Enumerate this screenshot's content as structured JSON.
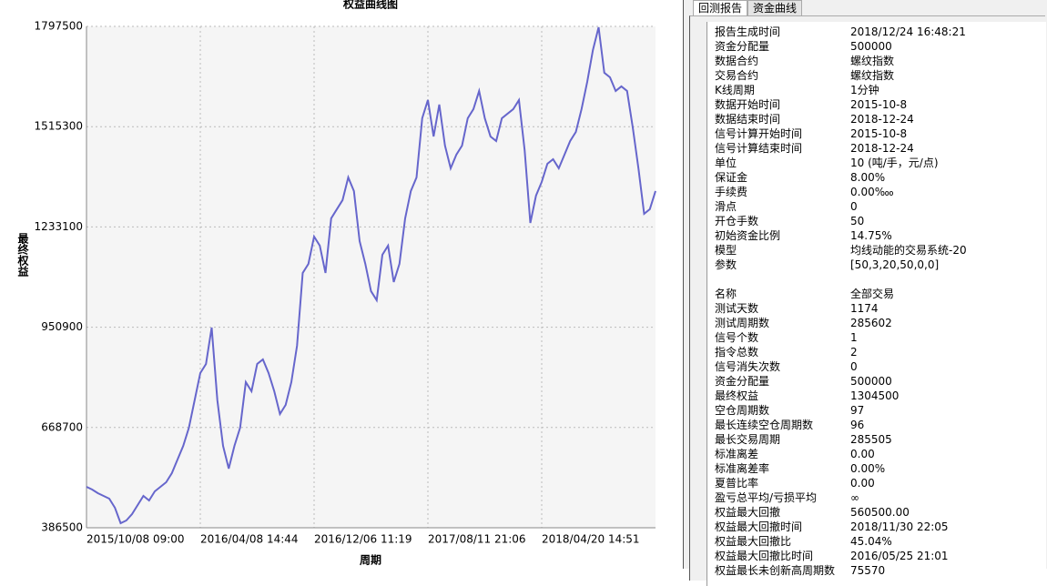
{
  "chart_data": {
    "type": "line",
    "title": "权益曲线图",
    "x_label": "周期",
    "y_label": "最终权益",
    "categories": [
      "2015/10/08 09:00",
      null,
      null,
      null,
      null,
      null,
      null,
      null,
      null,
      null,
      null,
      null,
      null,
      null,
      null,
      null,
      null,
      null,
      null,
      null,
      "2016/04/08 14:44",
      null,
      null,
      null,
      null,
      null,
      null,
      null,
      null,
      null,
      null,
      null,
      null,
      null,
      null,
      null,
      null,
      null,
      null,
      null,
      "2016/12/06 11:19",
      null,
      null,
      null,
      null,
      null,
      null,
      null,
      null,
      null,
      null,
      null,
      null,
      null,
      null,
      null,
      null,
      null,
      null,
      null,
      "2017/08/11 21:06",
      null,
      null,
      null,
      null,
      null,
      null,
      null,
      null,
      null,
      null,
      null,
      null,
      null,
      null,
      null,
      null,
      null,
      null,
      null,
      "2018/04/20 14:51",
      null,
      null,
      null,
      null,
      null,
      null,
      null,
      null,
      null,
      null,
      null,
      null,
      null,
      null,
      null,
      null,
      null,
      null,
      null,
      null
    ],
    "series": [
      {
        "name": "最终权益",
        "color": "#6666cc",
        "values": [
          501700,
          494100,
          483800,
          476100,
          468500,
          442800,
          399300,
          407000,
          424900,
          450500,
          476100,
          463300,
          488900,
          501700,
          514600,
          540200,
          578600,
          617000,
          668200,
          745000,
          821900,
          847500,
          949900,
          745000,
          617000,
          553000,
          617000,
          668200,
          796300,
          770700,
          847500,
          860300,
          821900,
          770700,
          706600,
          732200,
          796300,
          898700,
          1103600,
          1129200,
          1206000,
          1180400,
          1103600,
          1257200,
          1282900,
          1308500,
          1372500,
          1334100,
          1193200,
          1129200,
          1052400,
          1026800,
          1154800,
          1180400,
          1078000,
          1129200,
          1257200,
          1334100,
          1372500,
          1539000,
          1590200,
          1487700,
          1577400,
          1462100,
          1398100,
          1436500,
          1462100,
          1539000,
          1564600,
          1615800,
          1539000,
          1487700,
          1474900,
          1539000,
          1551800,
          1564600,
          1590200,
          1449300,
          1244400,
          1321300,
          1359700,
          1410900,
          1423700,
          1398100,
          1436500,
          1474900,
          1500500,
          1564600,
          1641400,
          1731000,
          1795100,
          1667000,
          1654200,
          1615800,
          1628600,
          1615800,
          1513300,
          1398100,
          1270000,
          1282900,
          1334100
        ]
      }
    ],
    "ylim": [
      386500,
      1797500
    ],
    "yticks": [
      386500,
      668700,
      950900,
      1233100,
      1515300,
      1797500
    ],
    "grid": true
  },
  "tabs": [
    "回测报告",
    "资金曲线"
  ],
  "report": {
    "sections": [
      [
        {
          "key": "报告生成时间",
          "value": "2018/12/24 16:48:21"
        },
        {
          "key": "资金分配量",
          "value": "500000"
        },
        {
          "key": "数据合约",
          "value": "螺纹指数"
        },
        {
          "key": "交易合约",
          "value": "螺纹指数"
        },
        {
          "key": "K线周期",
          "value": "1分钟"
        },
        {
          "key": "数据开始时间",
          "value": "2015-10-8"
        },
        {
          "key": "数据结束时间",
          "value": "2018-12-24"
        },
        {
          "key": "信号计算开始时间",
          "value": "2015-10-8"
        },
        {
          "key": "信号计算结束时间",
          "value": "2018-12-24"
        },
        {
          "key": "单位",
          "value": "10 (吨/手，元/点)"
        },
        {
          "key": "保证金",
          "value": "8.00%"
        },
        {
          "key": "手续费",
          "value": "0.00‱"
        },
        {
          "key": "滑点",
          "value": "0"
        },
        {
          "key": "开仓手数",
          "value": "50"
        },
        {
          "key": "初始资金比例",
          "value": "14.75%"
        },
        {
          "key": "模型",
          "value": "均线动能的交易系统-20"
        },
        {
          "key": "参数",
          "value": "[50,3,20,50,0,0]"
        }
      ],
      [
        {
          "key": "名称",
          "value": "全部交易"
        },
        {
          "key": "测试天数",
          "value": "1174"
        },
        {
          "key": "测试周期数",
          "value": "285602"
        },
        {
          "key": "信号个数",
          "value": "1"
        },
        {
          "key": "指令总数",
          "value": "2"
        },
        {
          "key": "信号消失次数",
          "value": "0"
        },
        {
          "key": "资金分配量",
          "value": "500000"
        },
        {
          "key": "最终权益",
          "value": "1304500"
        },
        {
          "key": "空仓周期数",
          "value": "97"
        },
        {
          "key": "最长连续空仓周期数",
          "value": "96"
        },
        {
          "key": "最长交易周期",
          "value": "285505"
        },
        {
          "key": "标准离差",
          "value": "0.00"
        },
        {
          "key": "标准离差率",
          "value": "0.00%"
        },
        {
          "key": "夏普比率",
          "value": "0.00"
        },
        {
          "key": "盈亏总平均/亏损平均",
          "value": "∞"
        },
        {
          "key": "权益最大回撤",
          "value": "560500.00"
        },
        {
          "key": "权益最大回撤时间",
          "value": "2018/11/30 22:05"
        },
        {
          "key": "权益最大回撤比",
          "value": "45.04%"
        },
        {
          "key": "权益最大回撤比时间",
          "value": "2016/05/25 21:01"
        },
        {
          "key": "权益最长未创新高周期数",
          "value": "75570"
        }
      ]
    ]
  }
}
